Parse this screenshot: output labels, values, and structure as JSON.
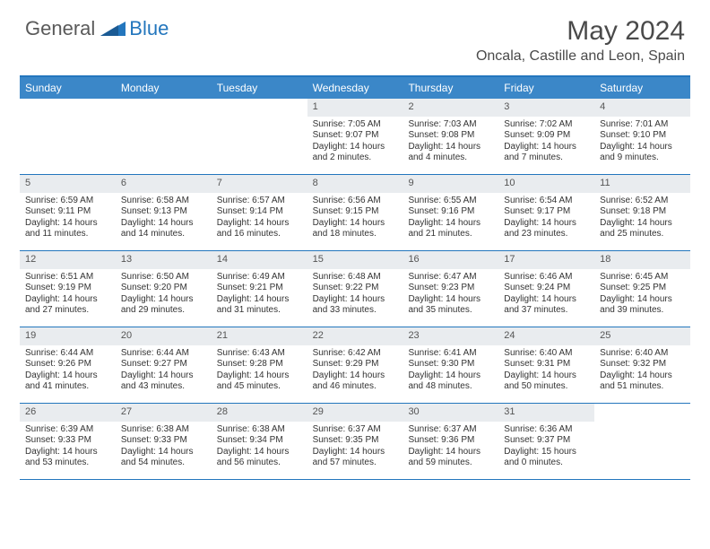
{
  "logo": {
    "text1": "General",
    "text2": "Blue"
  },
  "title": "May 2024",
  "location": "Oncala, Castille and Leon, Spain",
  "colors": {
    "header_bg": "#3b87c8",
    "border": "#2376bd",
    "daynum_bg": "#e9ecef",
    "text": "#333333"
  },
  "day_headers": [
    "Sunday",
    "Monday",
    "Tuesday",
    "Wednesday",
    "Thursday",
    "Friday",
    "Saturday"
  ],
  "weeks": [
    [
      null,
      null,
      null,
      {
        "n": "1",
        "sr": "7:05 AM",
        "ss": "9:07 PM",
        "d1": "14 hours",
        "d2": "and 2 minutes."
      },
      {
        "n": "2",
        "sr": "7:03 AM",
        "ss": "9:08 PM",
        "d1": "14 hours",
        "d2": "and 4 minutes."
      },
      {
        "n": "3",
        "sr": "7:02 AM",
        "ss": "9:09 PM",
        "d1": "14 hours",
        "d2": "and 7 minutes."
      },
      {
        "n": "4",
        "sr": "7:01 AM",
        "ss": "9:10 PM",
        "d1": "14 hours",
        "d2": "and 9 minutes."
      }
    ],
    [
      {
        "n": "5",
        "sr": "6:59 AM",
        "ss": "9:11 PM",
        "d1": "14 hours",
        "d2": "and 11 minutes."
      },
      {
        "n": "6",
        "sr": "6:58 AM",
        "ss": "9:13 PM",
        "d1": "14 hours",
        "d2": "and 14 minutes."
      },
      {
        "n": "7",
        "sr": "6:57 AM",
        "ss": "9:14 PM",
        "d1": "14 hours",
        "d2": "and 16 minutes."
      },
      {
        "n": "8",
        "sr": "6:56 AM",
        "ss": "9:15 PM",
        "d1": "14 hours",
        "d2": "and 18 minutes."
      },
      {
        "n": "9",
        "sr": "6:55 AM",
        "ss": "9:16 PM",
        "d1": "14 hours",
        "d2": "and 21 minutes."
      },
      {
        "n": "10",
        "sr": "6:54 AM",
        "ss": "9:17 PM",
        "d1": "14 hours",
        "d2": "and 23 minutes."
      },
      {
        "n": "11",
        "sr": "6:52 AM",
        "ss": "9:18 PM",
        "d1": "14 hours",
        "d2": "and 25 minutes."
      }
    ],
    [
      {
        "n": "12",
        "sr": "6:51 AM",
        "ss": "9:19 PM",
        "d1": "14 hours",
        "d2": "and 27 minutes."
      },
      {
        "n": "13",
        "sr": "6:50 AM",
        "ss": "9:20 PM",
        "d1": "14 hours",
        "d2": "and 29 minutes."
      },
      {
        "n": "14",
        "sr": "6:49 AM",
        "ss": "9:21 PM",
        "d1": "14 hours",
        "d2": "and 31 minutes."
      },
      {
        "n": "15",
        "sr": "6:48 AM",
        "ss": "9:22 PM",
        "d1": "14 hours",
        "d2": "and 33 minutes."
      },
      {
        "n": "16",
        "sr": "6:47 AM",
        "ss": "9:23 PM",
        "d1": "14 hours",
        "d2": "and 35 minutes."
      },
      {
        "n": "17",
        "sr": "6:46 AM",
        "ss": "9:24 PM",
        "d1": "14 hours",
        "d2": "and 37 minutes."
      },
      {
        "n": "18",
        "sr": "6:45 AM",
        "ss": "9:25 PM",
        "d1": "14 hours",
        "d2": "and 39 minutes."
      }
    ],
    [
      {
        "n": "19",
        "sr": "6:44 AM",
        "ss": "9:26 PM",
        "d1": "14 hours",
        "d2": "and 41 minutes."
      },
      {
        "n": "20",
        "sr": "6:44 AM",
        "ss": "9:27 PM",
        "d1": "14 hours",
        "d2": "and 43 minutes."
      },
      {
        "n": "21",
        "sr": "6:43 AM",
        "ss": "9:28 PM",
        "d1": "14 hours",
        "d2": "and 45 minutes."
      },
      {
        "n": "22",
        "sr": "6:42 AM",
        "ss": "9:29 PM",
        "d1": "14 hours",
        "d2": "and 46 minutes."
      },
      {
        "n": "23",
        "sr": "6:41 AM",
        "ss": "9:30 PM",
        "d1": "14 hours",
        "d2": "and 48 minutes."
      },
      {
        "n": "24",
        "sr": "6:40 AM",
        "ss": "9:31 PM",
        "d1": "14 hours",
        "d2": "and 50 minutes."
      },
      {
        "n": "25",
        "sr": "6:40 AM",
        "ss": "9:32 PM",
        "d1": "14 hours",
        "d2": "and 51 minutes."
      }
    ],
    [
      {
        "n": "26",
        "sr": "6:39 AM",
        "ss": "9:33 PM",
        "d1": "14 hours",
        "d2": "and 53 minutes."
      },
      {
        "n": "27",
        "sr": "6:38 AM",
        "ss": "9:33 PM",
        "d1": "14 hours",
        "d2": "and 54 minutes."
      },
      {
        "n": "28",
        "sr": "6:38 AM",
        "ss": "9:34 PM",
        "d1": "14 hours",
        "d2": "and 56 minutes."
      },
      {
        "n": "29",
        "sr": "6:37 AM",
        "ss": "9:35 PM",
        "d1": "14 hours",
        "d2": "and 57 minutes."
      },
      {
        "n": "30",
        "sr": "6:37 AM",
        "ss": "9:36 PM",
        "d1": "14 hours",
        "d2": "and 59 minutes."
      },
      {
        "n": "31",
        "sr": "6:36 AM",
        "ss": "9:37 PM",
        "d1": "15 hours",
        "d2": "and 0 minutes."
      },
      null
    ]
  ],
  "labels": {
    "sunrise": "Sunrise:",
    "sunset": "Sunset:",
    "daylight": "Daylight:"
  }
}
